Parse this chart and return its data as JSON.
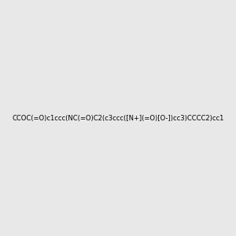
{
  "smiles": "CCOC(=O)c1ccc(NC(=O)C2(c3ccc([N+](=O)[O-])cc3)CCCC2)cc1",
  "title": "",
  "background_color": "#e8e8e8",
  "figsize": [
    3.0,
    3.0
  ],
  "dpi": 100
}
